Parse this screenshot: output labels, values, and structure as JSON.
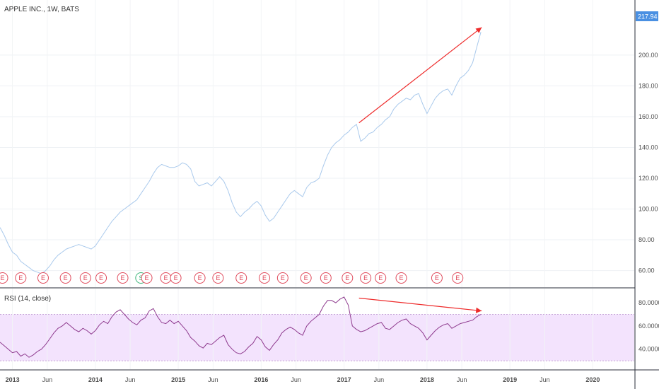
{
  "chart_data": [
    {
      "type": "line",
      "title": "APPLE INC., 1W, BATS",
      "last_price": "217.94",
      "y_ticks": [
        "60.00",
        "80.00",
        "100.00",
        "120.00",
        "140.00",
        "160.00",
        "180.00",
        "200.00"
      ],
      "ylim": [
        52,
        222
      ],
      "x_ticks": [
        "2013",
        "Jun",
        "2014",
        "Jun",
        "2015",
        "Jun",
        "2016",
        "Jun",
        "2017",
        "Jun",
        "2018",
        "Jun",
        "2019",
        "Jun",
        "2020"
      ],
      "x_tick_bold": [
        true,
        false,
        true,
        false,
        true,
        false,
        true,
        false,
        true,
        false,
        true,
        false,
        true,
        false,
        true
      ],
      "xlim": [
        2012.85,
        2020.5
      ],
      "series": [
        {
          "x": [
            2012.85,
            2012.9,
            2012.95,
            2013.0,
            2013.05,
            2013.1,
            2013.15,
            2013.2,
            2013.25,
            2013.3,
            2013.35,
            2013.4,
            2013.45,
            2013.5,
            2013.55,
            2013.6,
            2013.65,
            2013.7,
            2013.75,
            2013.8,
            2013.85,
            2013.9,
            2013.95,
            2014.0,
            2014.05,
            2014.1,
            2014.15,
            2014.2,
            2014.25,
            2014.3,
            2014.35,
            2014.4,
            2014.45,
            2014.5,
            2014.55,
            2014.6,
            2014.65,
            2014.7,
            2014.75,
            2014.8,
            2014.85,
            2014.9,
            2014.95,
            2015.0,
            2015.05,
            2015.1,
            2015.15,
            2015.2,
            2015.25,
            2015.3,
            2015.35,
            2015.4,
            2015.45,
            2015.5,
            2015.55,
            2015.6,
            2015.65,
            2015.7,
            2015.75,
            2015.8,
            2015.85,
            2015.9,
            2015.95,
            2016.0,
            2016.05,
            2016.1,
            2016.15,
            2016.2,
            2016.25,
            2016.3,
            2016.35,
            2016.4,
            2016.45,
            2016.5,
            2016.55,
            2016.6,
            2016.65,
            2016.7,
            2016.75,
            2016.8,
            2016.85,
            2016.9,
            2016.95,
            2017.0,
            2017.05,
            2017.1,
            2017.15,
            2017.2,
            2017.25,
            2017.3,
            2017.35,
            2017.4,
            2017.45,
            2017.5,
            2017.55,
            2017.6,
            2017.65,
            2017.7,
            2017.75,
            2017.8,
            2017.85,
            2017.9,
            2017.95,
            2018.0,
            2018.05,
            2018.1,
            2018.15,
            2018.2,
            2018.25,
            2018.3,
            2018.35,
            2018.4,
            2018.45,
            2018.5,
            2018.55,
            2018.6,
            2018.65
          ],
          "values": [
            88,
            83,
            77,
            72,
            70,
            66,
            64,
            62,
            60,
            59,
            58,
            60,
            63,
            67,
            70,
            72,
            74,
            75,
            76,
            77,
            76,
            75,
            74,
            76,
            80,
            84,
            88,
            92,
            95,
            98,
            100,
            102,
            104,
            106,
            110,
            114,
            118,
            123,
            127,
            129,
            128,
            127,
            127,
            128,
            130,
            129,
            126,
            118,
            115,
            116,
            117,
            115,
            118,
            121,
            118,
            112,
            104,
            98,
            95,
            98,
            100,
            103,
            105,
            102,
            96,
            92,
            94,
            98,
            102,
            106,
            110,
            112,
            110,
            108,
            114,
            117,
            118,
            120,
            128,
            135,
            140,
            143,
            145,
            148,
            150,
            153,
            155,
            144,
            146,
            149,
            150,
            153,
            155,
            158,
            160,
            165,
            168,
            170,
            172,
            171,
            174,
            175,
            168,
            162,
            167,
            172,
            175,
            177,
            178,
            174,
            180,
            185,
            187,
            190,
            195,
            205,
            215
          ],
          "color": "#a9c9ec"
        }
      ],
      "annotation_arrow": {
        "from": [
          2017.18,
          156
        ],
        "to": [
          2018.66,
          218
        ],
        "color": "#ee2b2b"
      },
      "event_markers": [
        "E",
        "E",
        "E",
        "E",
        "E",
        "E",
        "E",
        "S",
        "E",
        "E",
        "E",
        "E",
        "E",
        "E",
        "E",
        "E",
        "E",
        "E",
        "E",
        "E",
        "E",
        "E",
        "E",
        "E"
      ],
      "event_x": [
        2012.88,
        2013.1,
        2013.37,
        2013.64,
        2013.88,
        2014.07,
        2014.33,
        2014.55,
        2014.62,
        2014.85,
        2014.97,
        2015.26,
        2015.48,
        2015.76,
        2016.04,
        2016.26,
        2016.54,
        2016.78,
        2017.04,
        2017.26,
        2017.44,
        2017.69,
        2018.12,
        2018.37
      ],
      "event_colors": [
        "#e04a5b",
        "#e04a5b",
        "#e04a5b",
        "#e04a5b",
        "#e04a5b",
        "#e04a5b",
        "#e04a5b",
        "#3bb57a",
        "#e04a5b",
        "#e04a5b",
        "#e04a5b",
        "#e04a5b",
        "#e04a5b",
        "#e04a5b",
        "#e04a5b",
        "#e04a5b",
        "#e04a5b",
        "#e04a5b",
        "#e04a5b",
        "#e04a5b",
        "#e04a5b",
        "#e04a5b",
        "#e04a5b",
        "#e04a5b"
      ],
      "grid": true
    },
    {
      "type": "line",
      "title": "RSI (14, close)",
      "y_ticks": [
        "40.0000",
        "60.0000",
        "80.0000"
      ],
      "ylim": [
        24,
        91
      ],
      "band": [
        30,
        70
      ],
      "band_color": "#f3e3fd",
      "series": [
        {
          "x": [
            2012.85,
            2012.9,
            2012.95,
            2013.0,
            2013.05,
            2013.1,
            2013.15,
            2013.2,
            2013.25,
            2013.3,
            2013.35,
            2013.4,
            2013.45,
            2013.5,
            2013.55,
            2013.6,
            2013.65,
            2013.7,
            2013.75,
            2013.8,
            2013.85,
            2013.9,
            2013.95,
            2014.0,
            2014.05,
            2014.1,
            2014.15,
            2014.2,
            2014.25,
            2014.3,
            2014.35,
            2014.4,
            2014.45,
            2014.5,
            2014.55,
            2014.6,
            2014.65,
            2014.7,
            2014.75,
            2014.8,
            2014.85,
            2014.9,
            2014.95,
            2015.0,
            2015.05,
            2015.1,
            2015.15,
            2015.2,
            2015.25,
            2015.3,
            2015.35,
            2015.4,
            2015.45,
            2015.5,
            2015.55,
            2015.6,
            2015.65,
            2015.7,
            2015.75,
            2015.8,
            2015.85,
            2015.9,
            2015.95,
            2016.0,
            2016.05,
            2016.1,
            2016.15,
            2016.2,
            2016.25,
            2016.3,
            2016.35,
            2016.4,
            2016.45,
            2016.5,
            2016.55,
            2016.6,
            2016.65,
            2016.7,
            2016.75,
            2016.8,
            2016.85,
            2016.9,
            2016.95,
            2017.0,
            2017.05,
            2017.1,
            2017.15,
            2017.2,
            2017.25,
            2017.3,
            2017.35,
            2017.4,
            2017.45,
            2017.5,
            2017.55,
            2017.6,
            2017.65,
            2017.7,
            2017.75,
            2017.8,
            2017.85,
            2017.9,
            2017.95,
            2018.0,
            2018.05,
            2018.1,
            2018.15,
            2018.2,
            2018.25,
            2018.3,
            2018.35,
            2018.4,
            2018.45,
            2018.5,
            2018.55,
            2018.6,
            2018.65
          ],
          "values": [
            46,
            43,
            40,
            37,
            38,
            34,
            36,
            33,
            35,
            38,
            40,
            44,
            49,
            54,
            58,
            60,
            63,
            60,
            57,
            55,
            58,
            56,
            53,
            56,
            61,
            64,
            62,
            68,
            72,
            74,
            70,
            66,
            63,
            61,
            65,
            67,
            73,
            75,
            68,
            63,
            62,
            65,
            62,
            64,
            60,
            56,
            50,
            47,
            43,
            41,
            45,
            44,
            47,
            50,
            52,
            44,
            40,
            37,
            36,
            38,
            42,
            45,
            51,
            48,
            42,
            39,
            44,
            48,
            54,
            57,
            59,
            57,
            54,
            52,
            60,
            64,
            67,
            70,
            77,
            82,
            82,
            80,
            83,
            85,
            78,
            60,
            57,
            55,
            56,
            58,
            60,
            62,
            63,
            58,
            57,
            60,
            63,
            65,
            66,
            62,
            60,
            58,
            54,
            48,
            52,
            56,
            59,
            61,
            62,
            58,
            60,
            62,
            63,
            64,
            65,
            68,
            70
          ],
          "color": "#8e3a8e"
        }
      ],
      "annotation_arrow": {
        "from": [
          2017.18,
          84
        ],
        "to": [
          2018.66,
          73
        ],
        "color": "#ee2b2b"
      },
      "grid": true
    }
  ]
}
